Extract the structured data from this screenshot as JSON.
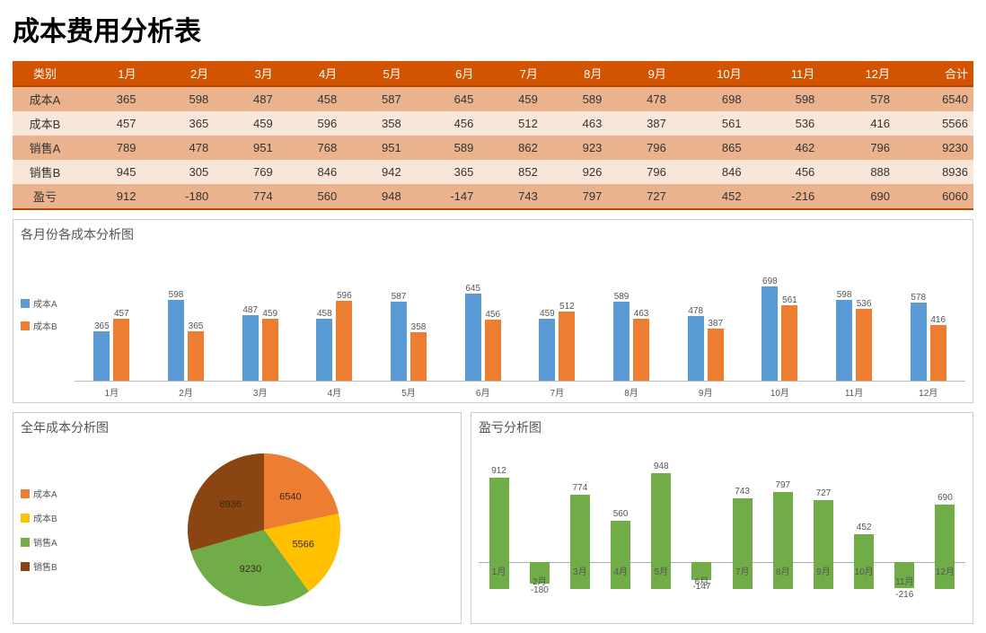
{
  "title": "成本费用分析表",
  "months": [
    "1月",
    "2月",
    "3月",
    "4月",
    "5月",
    "6月",
    "7月",
    "8月",
    "9月",
    "10月",
    "11月",
    "12月"
  ],
  "table": {
    "header_first": "类别",
    "header_total": "合计",
    "rows": [
      {
        "label": "成本A",
        "vals": [
          365,
          598,
          487,
          458,
          587,
          645,
          459,
          589,
          478,
          698,
          598,
          578
        ],
        "total": 6540,
        "shade": "dark"
      },
      {
        "label": "成本B",
        "vals": [
          457,
          365,
          459,
          596,
          358,
          456,
          512,
          463,
          387,
          561,
          536,
          416
        ],
        "total": 5566,
        "shade": "light"
      },
      {
        "label": "销售A",
        "vals": [
          789,
          478,
          951,
          768,
          951,
          589,
          862,
          923,
          796,
          865,
          462,
          796
        ],
        "total": 9230,
        "shade": "dark"
      },
      {
        "label": "销售B",
        "vals": [
          945,
          305,
          769,
          846,
          942,
          365,
          852,
          926,
          796,
          846,
          456,
          888
        ],
        "total": 8936,
        "shade": "light"
      },
      {
        "label": "盈亏",
        "vals": [
          912,
          -180,
          774,
          560,
          948,
          -147,
          743,
          797,
          727,
          452,
          -216,
          690
        ],
        "total": 6060,
        "shade": "dark"
      }
    ],
    "header_bg": "#d35400",
    "row_dark_bg": "#eab38e",
    "row_light_bg": "#f8e6d9"
  },
  "bar_chart": {
    "title": "各月份各成本分析图",
    "series": [
      {
        "name": "成本A",
        "color": "#5b9bd5"
      },
      {
        "name": "成本B",
        "color": "#ed7d31"
      }
    ],
    "data_a": [
      365,
      598,
      487,
      458,
      587,
      645,
      459,
      589,
      478,
      698,
      598,
      578
    ],
    "data_b": [
      457,
      365,
      459,
      596,
      358,
      456,
      512,
      463,
      387,
      561,
      536,
      416
    ],
    "ymax": 800
  },
  "pie_chart": {
    "title": "全年成本分析图",
    "slices": [
      {
        "name": "成本A",
        "value": 6540,
        "color": "#ed7d31"
      },
      {
        "name": "成本B",
        "value": 5566,
        "color": "#ffc000"
      },
      {
        "name": "销售A",
        "value": 9230,
        "color": "#70ad47"
      },
      {
        "name": "销售B",
        "value": 8936,
        "color": "#8b4513"
      }
    ]
  },
  "pl_chart": {
    "title": "盈亏分析图",
    "color": "#70ad47",
    "values": [
      912,
      -180,
      774,
      560,
      948,
      -147,
      743,
      797,
      727,
      452,
      -216,
      690
    ],
    "ymax": 1000,
    "ymin": -250
  }
}
